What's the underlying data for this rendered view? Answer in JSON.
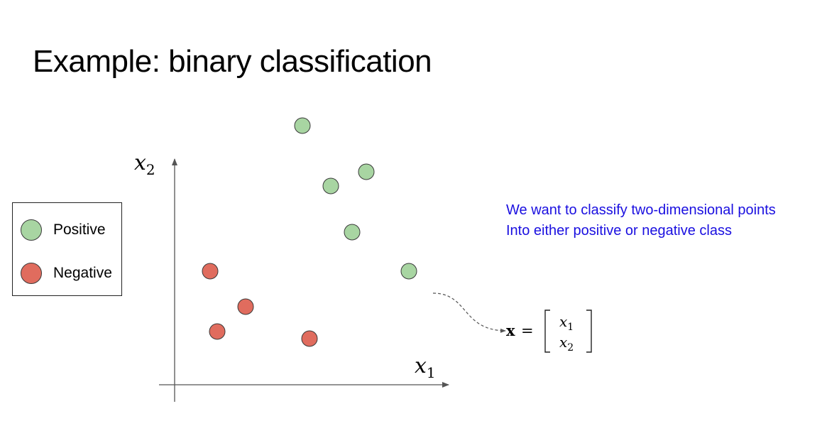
{
  "title": "Example: binary classification",
  "legend": {
    "positive": {
      "label": "Positive",
      "color": "#a8d5a2"
    },
    "negative": {
      "label": "Negative",
      "color": "#e06c5e"
    }
  },
  "axes": {
    "x_label": "x",
    "x_sub": "1",
    "y_label": "x",
    "y_sub": "2"
  },
  "points": [
    {
      "class": "positive",
      "x1": 3.6,
      "x2": 7.3
    },
    {
      "class": "positive",
      "x1": 5.4,
      "x2": 6.0
    },
    {
      "class": "positive",
      "x1": 4.4,
      "x2": 5.6
    },
    {
      "class": "positive",
      "x1": 5.0,
      "x2": 4.3
    },
    {
      "class": "positive",
      "x1": 6.6,
      "x2": 3.2
    },
    {
      "class": "negative",
      "x1": 1.0,
      "x2": 3.2
    },
    {
      "class": "negative",
      "x1": 2.0,
      "x2": 2.2
    },
    {
      "class": "negative",
      "x1": 1.2,
      "x2": 1.5
    },
    {
      "class": "negative",
      "x1": 3.8,
      "x2": 1.3
    }
  ],
  "vector": {
    "bold": "x",
    "equals": "=",
    "rows": [
      {
        "var": "x",
        "sub": "1"
      },
      {
        "var": "x",
        "sub": "2"
      }
    ]
  },
  "note": {
    "line1": "We want to classify two-dimensional points",
    "line2": "Into either positive or negative class"
  }
}
